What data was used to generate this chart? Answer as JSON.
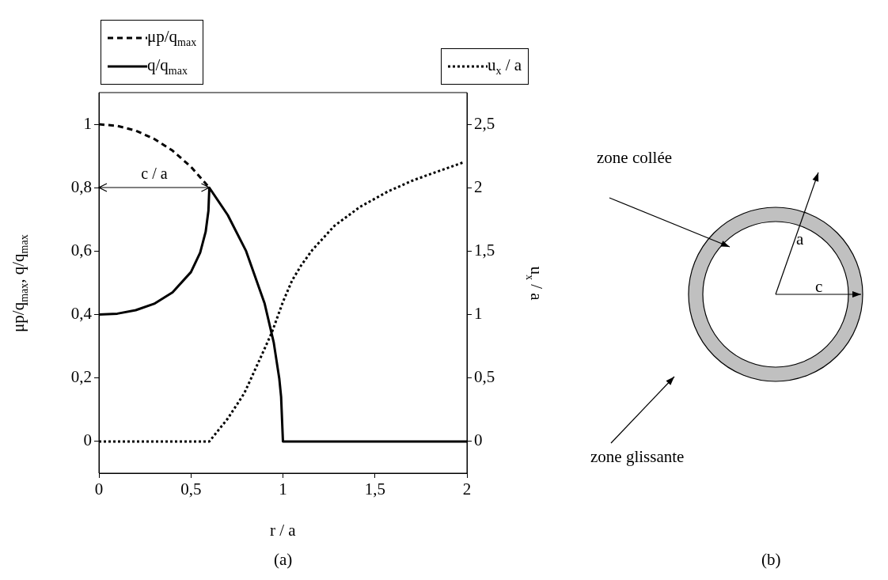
{
  "chart_data": {
    "type": "line",
    "xlabel": "r / a",
    "ylabel": "μp/q$_{max}$, q/q$_{max}$",
    "y2label": "u$_{x}$ / a",
    "xlim": [
      0,
      2
    ],
    "xticks": [
      0,
      {
        "value": 0.5,
        "label": "0,5"
      },
      1,
      {
        "value": 1.5,
        "label": "1,5"
      },
      2
    ],
    "ylim": [
      -0.1,
      1.1
    ],
    "yticks": [
      0,
      {
        "value": 0.2,
        "label": "0,2"
      },
      {
        "value": 0.4,
        "label": "0,4"
      },
      {
        "value": 0.6,
        "label": "0,6"
      },
      {
        "value": 0.8,
        "label": "0,8"
      },
      1
    ],
    "y2lim": [
      -0.25,
      2.75
    ],
    "y2ticks": [
      0,
      {
        "value": 0.5,
        "label": "0,5"
      },
      1,
      {
        "value": 1.5,
        "label": "1,5"
      },
      2,
      {
        "value": 2.5,
        "label": "2,5"
      }
    ],
    "grid": false,
    "legend": "top",
    "marker": "none",
    "series": [
      {
        "name": "μp/q$_{max}$",
        "color": "#000000",
        "line_style": "dashed",
        "x": [
          0,
          0.1,
          0.2,
          0.3,
          0.4,
          0.5,
          0.6
        ],
        "values": [
          1,
          0.995,
          0.98,
          0.954,
          0.917,
          0.866,
          0.8
        ]
      },
      {
        "name": "q/q$_{max}$",
        "color": "#000000",
        "line_style": "solid",
        "x": [
          0,
          0.1,
          0.2,
          0.3,
          0.4,
          0.5,
          0.55,
          0.58,
          0.595,
          0.6,
          0.7,
          0.8,
          0.9,
          0.95,
          0.98,
          0.99,
          1,
          1.5,
          2
        ],
        "values": [
          0.4,
          0.403,
          0.414,
          0.434,
          0.47,
          0.534,
          0.595,
          0.661,
          0.727,
          0.8,
          0.714,
          0.6,
          0.436,
          0.312,
          0.199,
          0.141,
          0,
          0,
          0
        ]
      },
      {
        "name": "u$_{x}$ / a",
        "color": "#000000",
        "line_style": "dotted",
        "axis": "y2",
        "x": [
          0,
          0.3,
          0.6,
          0.7,
          0.79,
          0.875,
          0.94,
          1,
          1.05,
          1.1,
          1.16,
          1.28,
          1.42,
          1.57,
          1.71,
          1.98
        ],
        "values": [
          0,
          0,
          0,
          0.18,
          0.38,
          0.65,
          0.86,
          1.1,
          1.27,
          1.39,
          1.51,
          1.7,
          1.85,
          1.97,
          2.06,
          2.2
        ]
      }
    ],
    "annotations": [
      "c / a",
      "(a)",
      "zone collée",
      "zone glissante",
      "a",
      "c",
      "(b)"
    ]
  }
}
